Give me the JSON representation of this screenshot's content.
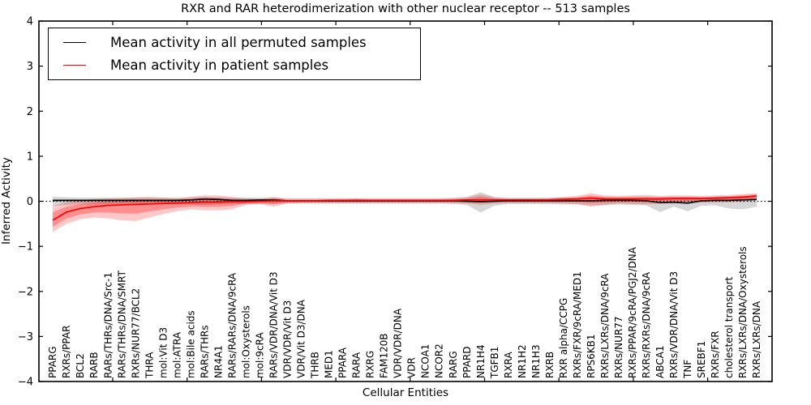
{
  "figure": {
    "title": "RXR and RAR heterodimerization with other nuclear receptor -- 513 samples",
    "xlabel": "Cellular Entities",
    "ylabel": "Inferred Activity",
    "legend": [
      {
        "label": "Mean activity in all permuted samples",
        "color": "#000000"
      },
      {
        "label": "Mean activity in patient samples",
        "color": "#ff0000"
      }
    ]
  },
  "chart_data": {
    "type": "line",
    "title": "RXR and RAR heterodimerization with other nuclear receptor -- 513 samples",
    "xlabel": "Cellular Entities",
    "ylabel": "Inferred Activity",
    "ylim": [
      -4,
      4
    ],
    "yticks": [
      -4,
      -3,
      -2,
      -1,
      0,
      1,
      2,
      3,
      4
    ],
    "ytick_labels": [
      "−4",
      "−3",
      "−2",
      "−1",
      "0",
      "1",
      "2",
      "3",
      "4"
    ],
    "grid": false,
    "legend_position": "upper left",
    "zero_line_style": "dotted",
    "categories": [
      "PPARG",
      "RXRs/PPAR",
      "BCL2",
      "RARB",
      "RARs/THRs/DNA/Src-1",
      "RARs/THRs/DNA/SMRT",
      "RXRs/NUR77/BCL2",
      "THRA",
      "mol:Vit D3",
      "mol:ATRA",
      "mol:Bile acids",
      "RARs/THRs",
      "NR4A1",
      "RARs/RARs/DNA/9cRA",
      "mol:Oxysterols",
      "mol:9cRA",
      "RARs/VDR/DNA/Vit D3",
      "VDR/VDR/Vit D3",
      "VDR/Vit D3/DNA",
      "THRB",
      "MED1",
      "PPARA",
      "RARA",
      "RXRG",
      "FAM120B",
      "VDR/VDR/DNA",
      "VDR",
      "NCOA1",
      "NCOR2",
      "RARG",
      "PPARD",
      "NR1H4",
      "TGFB1",
      "RXRA",
      "NR1H2",
      "NR1H3",
      "RXRB",
      "RXR alpha/CCPG",
      "RXRs/FXR/9cRA/MED1",
      "RPS6KB1",
      "RXRs/LXRs/DNA/9cRA",
      "RXRs/NUR77",
      "RXRs/PPAR/9cRA/PGJ2/DNA",
      "RXRs/RXRs/DNA/9cRA",
      "ABCA1",
      "RXRs/VDR/DNA/Vit D3",
      "TNF",
      "SREBF1",
      "RXRs/FXR",
      "cholesterol transport",
      "RXRs/LXRs/DNA/Oxysterols",
      "RXRs/LXRs/DNA"
    ],
    "series": [
      {
        "name": "Mean activity in all permuted samples",
        "color": "#000000",
        "band_color": "rgba(0,0,0,0.16)",
        "values": [
          0.02,
          0.02,
          0.02,
          0.02,
          0.02,
          0.02,
          0.02,
          0.02,
          0.02,
          0.02,
          0.03,
          0.05,
          0.04,
          0.02,
          0.02,
          0.03,
          0.03,
          0.01,
          0.01,
          0.01,
          0.01,
          0.01,
          0.01,
          0.01,
          0.01,
          0.01,
          0.01,
          0.01,
          0.01,
          0.01,
          0.0,
          -0.01,
          0.0,
          0.01,
          0.01,
          0.01,
          0.01,
          0.01,
          0.01,
          0.01,
          0.02,
          0.02,
          0.02,
          0.01,
          -0.03,
          -0.02,
          -0.04,
          0.01,
          0.02,
          0.02,
          0.03,
          0.04
        ],
        "band_lo": [
          -0.1,
          -0.08,
          -0.07,
          -0.07,
          -0.06,
          -0.06,
          -0.06,
          -0.06,
          -0.06,
          -0.06,
          -0.07,
          -0.08,
          -0.07,
          -0.06,
          -0.06,
          -0.06,
          -0.06,
          -0.05,
          -0.05,
          -0.05,
          -0.05,
          -0.05,
          -0.05,
          -0.05,
          -0.05,
          -0.05,
          -0.05,
          -0.05,
          -0.05,
          -0.06,
          -0.08,
          -0.25,
          -0.1,
          -0.06,
          -0.06,
          -0.06,
          -0.06,
          -0.07,
          -0.07,
          -0.09,
          -0.08,
          -0.07,
          -0.08,
          -0.09,
          -0.24,
          -0.12,
          -0.22,
          -0.1,
          -0.09,
          -0.16,
          -0.18,
          -0.12
        ],
        "band_hi": [
          0.1,
          0.09,
          0.08,
          0.08,
          0.08,
          0.08,
          0.08,
          0.08,
          0.08,
          0.08,
          0.09,
          0.1,
          0.09,
          0.08,
          0.08,
          0.08,
          0.08,
          0.07,
          0.07,
          0.07,
          0.07,
          0.07,
          0.07,
          0.07,
          0.07,
          0.07,
          0.07,
          0.07,
          0.07,
          0.08,
          0.1,
          0.2,
          0.1,
          0.08,
          0.08,
          0.08,
          0.08,
          0.08,
          0.08,
          0.09,
          0.09,
          0.09,
          0.09,
          0.09,
          0.1,
          0.09,
          0.1,
          0.09,
          0.09,
          0.1,
          0.12,
          0.1
        ]
      },
      {
        "name": "Mean activity in patient samples",
        "color": "#ff0000",
        "band_color": "rgba(255,0,0,0.22)",
        "inner_band_color": "rgba(255,0,0,0.28)",
        "values": [
          -0.42,
          -0.24,
          -0.16,
          -0.12,
          -0.09,
          -0.08,
          -0.07,
          -0.06,
          -0.05,
          -0.04,
          -0.03,
          -0.02,
          -0.02,
          -0.01,
          -0.01,
          0.0,
          0.01,
          0.01,
          0.01,
          0.01,
          0.02,
          0.02,
          0.02,
          0.02,
          0.02,
          0.02,
          0.02,
          0.02,
          0.02,
          0.02,
          0.03,
          0.03,
          0.03,
          0.03,
          0.03,
          0.03,
          0.03,
          0.04,
          0.05,
          0.07,
          0.05,
          0.05,
          0.05,
          0.05,
          0.05,
          0.06,
          0.06,
          0.06,
          0.07,
          0.08,
          0.09,
          0.12
        ],
        "band_lo": [
          -0.68,
          -0.5,
          -0.4,
          -0.36,
          -0.38,
          -0.42,
          -0.44,
          -0.36,
          -0.28,
          -0.22,
          -0.18,
          -0.2,
          -0.2,
          -0.18,
          -0.08,
          -0.06,
          -0.12,
          -0.05,
          -0.04,
          -0.04,
          -0.04,
          -0.04,
          -0.04,
          -0.04,
          -0.04,
          -0.04,
          -0.04,
          -0.04,
          -0.04,
          -0.04,
          -0.05,
          -0.08,
          -0.05,
          -0.04,
          -0.04,
          -0.04,
          -0.04,
          -0.05,
          -0.06,
          -0.12,
          -0.08,
          -0.05,
          -0.06,
          -0.07,
          -0.05,
          -0.04,
          -0.04,
          -0.03,
          -0.02,
          -0.02,
          -0.01,
          0.03
        ],
        "band_hi": [
          -0.1,
          -0.02,
          0.02,
          0.05,
          0.06,
          0.07,
          0.09,
          0.1,
          0.08,
          0.06,
          0.1,
          0.13,
          0.13,
          0.1,
          0.06,
          0.05,
          0.1,
          0.05,
          0.05,
          0.05,
          0.05,
          0.05,
          0.06,
          0.05,
          0.05,
          0.05,
          0.05,
          0.05,
          0.05,
          0.06,
          0.08,
          0.15,
          0.08,
          0.06,
          0.06,
          0.06,
          0.07,
          0.1,
          0.12,
          0.18,
          0.13,
          0.12,
          0.13,
          0.14,
          0.12,
          0.13,
          0.13,
          0.12,
          0.13,
          0.14,
          0.16,
          0.18
        ]
      }
    ]
  }
}
